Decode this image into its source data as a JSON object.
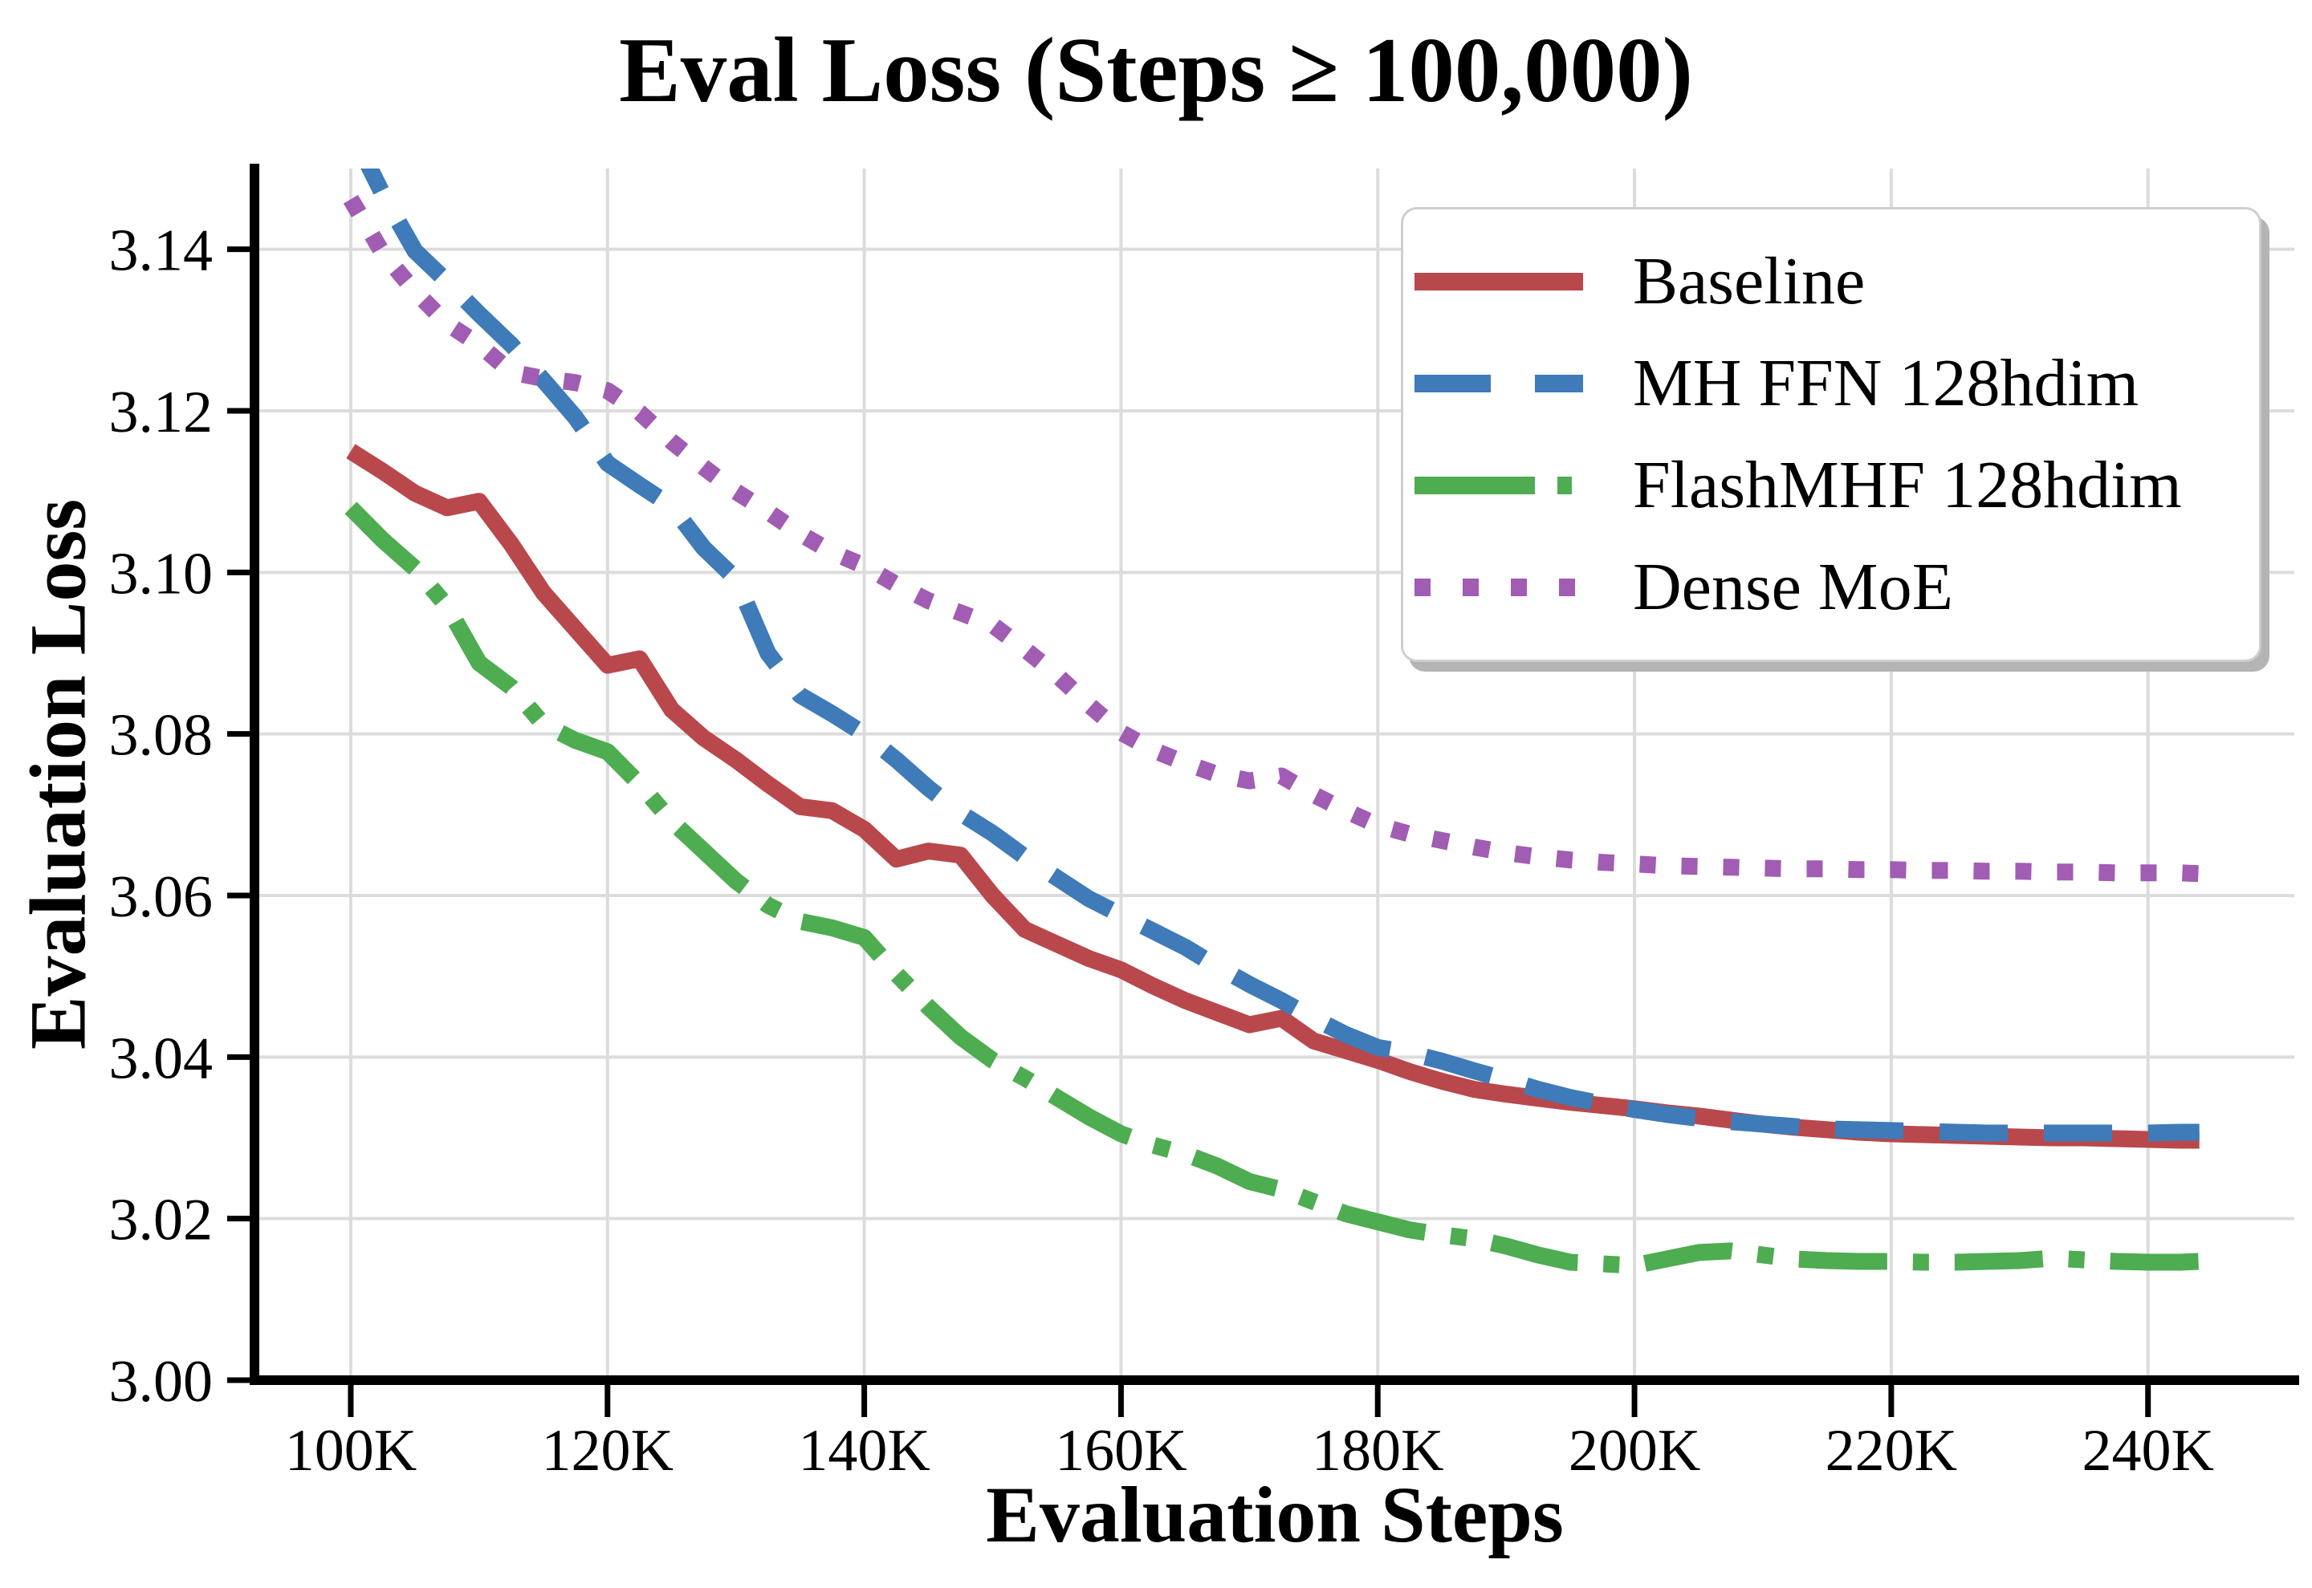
{
  "page": {
    "background": "#ffffff"
  },
  "chart_data": {
    "type": "line",
    "title": "Eval Loss (Steps ≥ 100,000)",
    "xlabel": "Evaluation Steps",
    "ylabel": "Evaluation Loss",
    "grid": true,
    "legend_position": "upper right",
    "axis_color": "#000000",
    "grid_color": "#dcdcdc",
    "xlim_k": [
      92.5,
      251.4
    ],
    "ylim": [
      3.0,
      3.15
    ],
    "x_ticks": [
      {
        "value": 100,
        "label": "100K"
      },
      {
        "value": 120,
        "label": "120K"
      },
      {
        "value": 140,
        "label": "140K"
      },
      {
        "value": 160,
        "label": "160K"
      },
      {
        "value": 180,
        "label": "180K"
      },
      {
        "value": 200,
        "label": "200K"
      },
      {
        "value": 220,
        "label": "220K"
      },
      {
        "value": 240,
        "label": "240K"
      }
    ],
    "y_ticks": [
      {
        "value": 3.0,
        "label": "3.00"
      },
      {
        "value": 3.02,
        "label": "3.02"
      },
      {
        "value": 3.04,
        "label": "3.04"
      },
      {
        "value": 3.06,
        "label": "3.06"
      },
      {
        "value": 3.08,
        "label": "3.08"
      },
      {
        "value": 3.1,
        "label": "3.10"
      },
      {
        "value": 3.12,
        "label": "3.12"
      },
      {
        "value": 3.14,
        "label": "3.14"
      }
    ],
    "steps_k": [
      100,
      102.5,
      105,
      107.5,
      110,
      112.5,
      115,
      117.5,
      120,
      122.5,
      125,
      127.5,
      130,
      132.5,
      135,
      137.5,
      140,
      142.5,
      145,
      147.5,
      150,
      152.5,
      155,
      157.5,
      160,
      162.5,
      165,
      167.5,
      170,
      172.5,
      175,
      177.5,
      180,
      182.5,
      185,
      187.5,
      190,
      192.5,
      195,
      197.5,
      200,
      202.5,
      205,
      207.5,
      210,
      212.5,
      215,
      217.5,
      220,
      222.5,
      225,
      227.5,
      230,
      232.5,
      235,
      237.5,
      240,
      242.5,
      244
    ],
    "series": [
      {
        "name": "Baseline",
        "color": "#b9484c",
        "style": "solid",
        "values": [
          3.115,
          3.1125,
          3.1098,
          3.108,
          3.1088,
          3.1035,
          3.0975,
          3.093,
          3.0885,
          3.0893,
          3.083,
          3.0795,
          3.0768,
          3.0738,
          3.071,
          3.0705,
          3.0682,
          3.0645,
          3.0655,
          3.065,
          3.06,
          3.0558,
          3.054,
          3.0522,
          3.0508,
          3.0488,
          3.047,
          3.0455,
          3.044,
          3.0448,
          3.042,
          3.0408,
          3.0396,
          3.0382,
          3.037,
          3.036,
          3.0354,
          3.0349,
          3.0344,
          3.034,
          3.0336,
          3.0331,
          3.0327,
          3.0322,
          3.0317,
          3.0313,
          3.031,
          3.0307,
          3.0305,
          3.0304,
          3.0303,
          3.0302,
          3.0301,
          3.03,
          3.03,
          3.0299,
          3.0298,
          3.0297,
          3.0297
        ]
      },
      {
        "name": "MH FFN 128hdim",
        "color": "#3e7bb8",
        "style": "dashed",
        "values": [
          3.1548,
          3.1468,
          3.1398,
          3.136,
          3.132,
          3.1282,
          3.1238,
          3.1192,
          3.1135,
          3.1108,
          3.1082,
          3.103,
          3.0992,
          3.09,
          3.0848,
          3.0825,
          3.08,
          3.0768,
          3.0733,
          3.0702,
          3.0677,
          3.0648,
          3.0622,
          3.0596,
          3.0576,
          3.0556,
          3.0536,
          3.0512,
          3.049,
          3.047,
          3.0448,
          3.0428,
          3.0412,
          3.0405,
          3.0395,
          3.0383,
          3.0372,
          3.036,
          3.035,
          3.0342,
          3.0335,
          3.0329,
          3.0324,
          3.032,
          3.0317,
          3.0314,
          3.0311,
          3.031,
          3.0309,
          3.0308,
          3.0307,
          3.0306,
          3.0306,
          3.0306,
          3.0306,
          3.0306,
          3.0306,
          3.0307,
          3.0307
        ]
      },
      {
        "name": "FlashMHF 128hdim",
        "color": "#4eac51",
        "style": "dashdot",
        "values": [
          3.108,
          3.104,
          3.1005,
          3.0958,
          3.0888,
          3.0858,
          3.0812,
          3.0792,
          3.0778,
          3.0738,
          3.0692,
          3.0655,
          3.0618,
          3.0588,
          3.0568,
          3.056,
          3.0548,
          3.0503,
          3.0462,
          3.0425,
          3.0396,
          3.0374,
          3.035,
          3.0326,
          3.0305,
          3.0291,
          3.028,
          3.0265,
          3.0246,
          3.0236,
          3.0221,
          3.0206,
          3.0196,
          3.0186,
          3.018,
          3.0175,
          3.0166,
          3.0155,
          3.0146,
          3.0144,
          3.0142,
          3.015,
          3.0158,
          3.016,
          3.0155,
          3.015,
          3.0148,
          3.0147,
          3.0147,
          3.0146,
          3.0146,
          3.0147,
          3.0148,
          3.0151,
          3.0149,
          3.0147,
          3.0146,
          3.0146,
          3.0147
        ]
      },
      {
        "name": "Dense MoE",
        "color": "#a15cb3",
        "style": "dotted",
        "values": [
          3.1462,
          3.1395,
          3.1348,
          3.1308,
          3.1282,
          3.1248,
          3.124,
          3.1235,
          3.1225,
          3.1198,
          3.1162,
          3.113,
          3.11,
          3.1075,
          3.1048,
          3.1025,
          3.1008,
          3.0985,
          3.0965,
          3.095,
          3.0935,
          3.0905,
          3.0873,
          3.0836,
          3.0802,
          3.078,
          3.0764,
          3.075,
          3.0742,
          3.0748,
          3.0725,
          3.0705,
          3.0687,
          3.0676,
          3.0668,
          3.066,
          3.0653,
          3.0648,
          3.0644,
          3.0641,
          3.0639,
          3.0637,
          3.0636,
          3.0635,
          3.0634,
          3.0633,
          3.0633,
          3.0632,
          3.0632,
          3.0631,
          3.0631,
          3.063,
          3.063,
          3.0629,
          3.0629,
          3.0628,
          3.0628,
          3.0628,
          3.0627
        ]
      }
    ]
  }
}
